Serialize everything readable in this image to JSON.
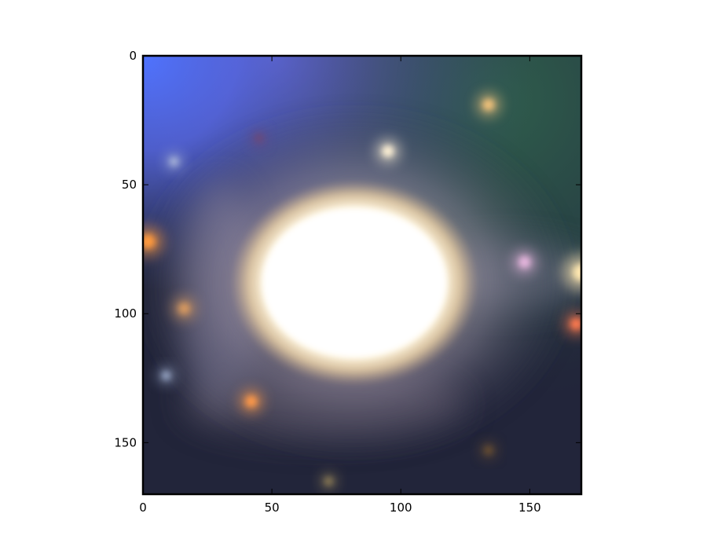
{
  "figure": {
    "background": "#ffffff",
    "image_description_colors": {
      "core": "#ffffff",
      "halo": "#f3dcb4",
      "sky_dark": "#1f2233",
      "sky_green": "#2d5a4a",
      "corner_blue": "#4f73ff"
    }
  },
  "axes": {
    "xlim": [
      0,
      170
    ],
    "ylim": [
      170,
      0
    ],
    "x_ticks": [
      {
        "value": 0,
        "label": "0"
      },
      {
        "value": 50,
        "label": "50"
      },
      {
        "value": 100,
        "label": "100"
      },
      {
        "value": 150,
        "label": "150"
      }
    ],
    "y_ticks": [
      {
        "value": 0,
        "label": "0"
      },
      {
        "value": 50,
        "label": "50"
      },
      {
        "value": 100,
        "label": "100"
      },
      {
        "value": 150,
        "label": "150"
      }
    ]
  },
  "image_features": {
    "galaxy_core": {
      "cx": 82,
      "cy": 88,
      "rx": 42,
      "ry": 32
    },
    "point_sources": [
      {
        "x": 95,
        "y": 37,
        "r": 4,
        "color": "#fff2d6"
      },
      {
        "x": 134,
        "y": 19,
        "r": 4,
        "color": "#f2c27a"
      },
      {
        "x": 2,
        "y": 72,
        "r": 5,
        "color": "#ff9a3c"
      },
      {
        "x": 170,
        "y": 84,
        "r": 6,
        "color": "#ffe7b0"
      },
      {
        "x": 168,
        "y": 104,
        "r": 4,
        "color": "#ff7a50"
      },
      {
        "x": 148,
        "y": 80,
        "r": 4,
        "color": "#e9b8e0"
      },
      {
        "x": 42,
        "y": 134,
        "r": 4,
        "color": "#ff9a4a"
      },
      {
        "x": 16,
        "y": 98,
        "r": 4,
        "color": "#d89a60"
      },
      {
        "x": 12,
        "y": 41,
        "r": 3,
        "color": "#aab6d8"
      },
      {
        "x": 9,
        "y": 124,
        "r": 3,
        "color": "#9aa8c8"
      },
      {
        "x": 72,
        "y": 165,
        "r": 3,
        "color": "#8a7a55"
      },
      {
        "x": 134,
        "y": 153,
        "r": 3,
        "color": "#6a5030"
      },
      {
        "x": 45,
        "y": 32,
        "r": 3,
        "color": "#6a4a7a"
      }
    ]
  }
}
